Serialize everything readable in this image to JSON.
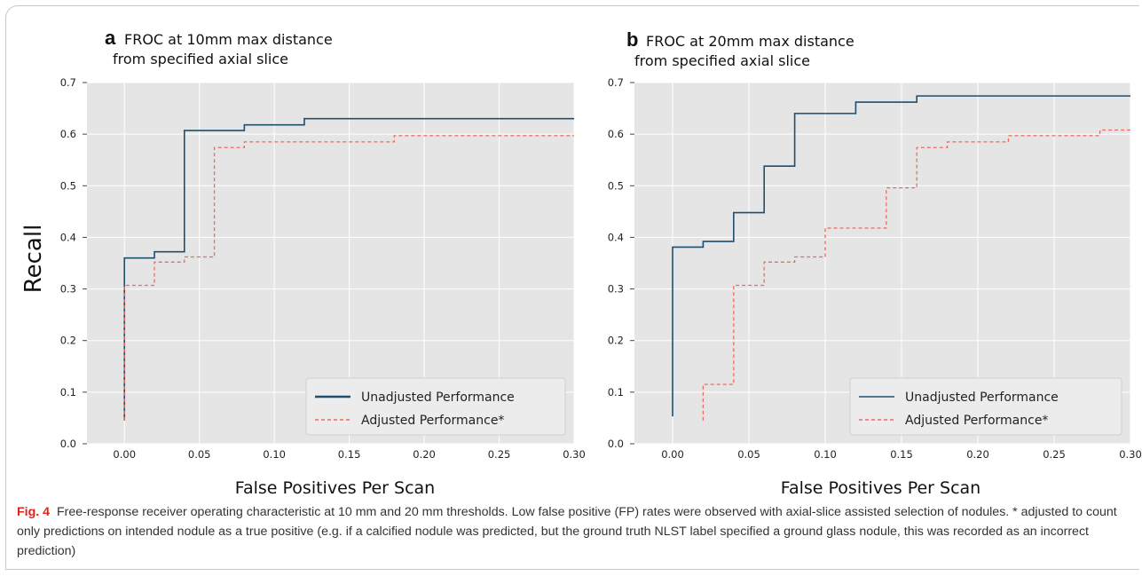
{
  "colors": {
    "unadjusted": "#1f4e6e",
    "adjusted": "#f06a5c",
    "plot_bg": "#e5e5e5",
    "grid": "#ffffff",
    "caption_label": "#e2231a"
  },
  "shared": {
    "ylabel": "Recall",
    "xlabel": "False Positives Per Scan",
    "yticks": [
      "0.0",
      "0.1",
      "0.2",
      "0.3",
      "0.4",
      "0.5",
      "0.6",
      "0.7"
    ],
    "xticks": [
      "0.00",
      "0.05",
      "0.10",
      "0.15",
      "0.20",
      "0.25",
      "0.30"
    ]
  },
  "caption": {
    "label": "Fig. 4",
    "text": "Free-response receiver operating characteristic at 10 mm and 20 mm thresholds. Low false positive (FP) rates were observed with axial-slice assisted selection of nodules. * adjusted to count only predictions on intended nodule as a true positive (e.g. if a calcified nodule was predicted, but the ground truth NLST label specified a ground glass nodule, this was recorded as an incorrect prediction)"
  },
  "chart_data": [
    {
      "type": "line",
      "step": "post",
      "panel_label": "a",
      "title_lines": [
        "FROC at 10mm max distance",
        "from specified axial slice"
      ],
      "xlabel": "False Positives Per Scan",
      "ylabel": "Recall",
      "xlim": [
        -0.025,
        0.3
      ],
      "ylim": [
        0.0,
        0.7
      ],
      "grid": true,
      "legend_position": "lower-right",
      "series": [
        {
          "name": "Unadjusted Performance",
          "style": "solid",
          "x": [
            0.0,
            0.0,
            0.02,
            0.04,
            0.08,
            0.12,
            0.3
          ],
          "y": [
            0.045,
            0.36,
            0.372,
            0.607,
            0.618,
            0.63,
            0.63
          ]
        },
        {
          "name": "Adjusted Performance*",
          "style": "dashed",
          "x": [
            0.0,
            0.0,
            0.02,
            0.04,
            0.06,
            0.08,
            0.18,
            0.3
          ],
          "y": [
            0.045,
            0.307,
            0.352,
            0.362,
            0.574,
            0.585,
            0.597,
            0.597
          ]
        }
      ]
    },
    {
      "type": "line",
      "step": "post",
      "panel_label": "b",
      "title_lines": [
        "FROC at 20mm max distance",
        "from specified axial slice"
      ],
      "xlabel": "False Positives Per Scan",
      "ylabel": "",
      "xlim": [
        -0.025,
        0.3
      ],
      "ylim": [
        0.0,
        0.7
      ],
      "grid": true,
      "legend_position": "lower-right",
      "series": [
        {
          "name": "Unadjusted Performance",
          "style": "solid",
          "x": [
            0.0,
            0.0,
            0.02,
            0.04,
            0.06,
            0.08,
            0.12,
            0.16,
            0.3
          ],
          "y": [
            0.053,
            0.381,
            0.392,
            0.448,
            0.538,
            0.64,
            0.662,
            0.674,
            0.674
          ]
        },
        {
          "name": "Adjusted Performance*",
          "style": "dashed",
          "x": [
            0.02,
            0.02,
            0.04,
            0.06,
            0.08,
            0.1,
            0.14,
            0.16,
            0.18,
            0.22,
            0.28,
            0.3
          ],
          "y": [
            0.045,
            0.115,
            0.307,
            0.352,
            0.362,
            0.418,
            0.496,
            0.574,
            0.585,
            0.597,
            0.608,
            0.608
          ]
        }
      ]
    }
  ]
}
